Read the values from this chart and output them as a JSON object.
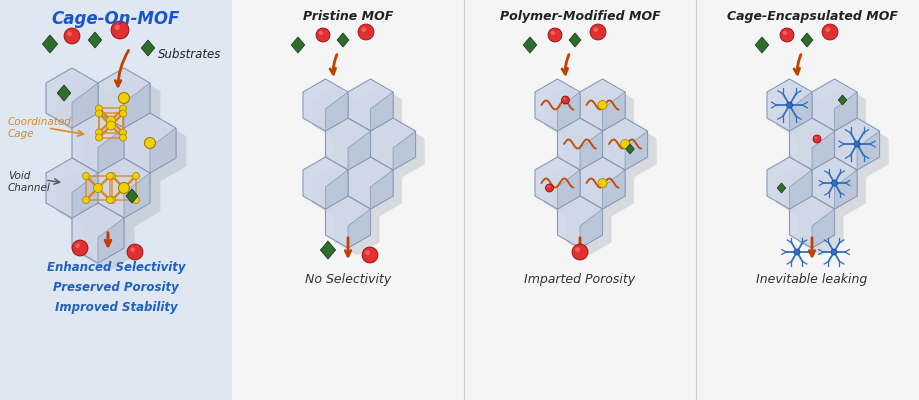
{
  "title": "Cage-On-MOF",
  "left_bg_color": "#dfe8f2",
  "right_bg_color": "#f5f5f5",
  "left_labels": [
    "Enhanced Selectivity",
    "Preserved Porosity",
    "Improved Stability"
  ],
  "left_label_color": "#2060c0",
  "column_titles": [
    "Pristine MOF",
    "Polymer-Modified MOF",
    "Cage-Encapsulated MOF"
  ],
  "column_titles_color": "#222222",
  "column_bottom_labels": [
    "No Selectivity",
    "Imparted Porosity",
    "Inevitable leaking"
  ],
  "column_bottom_color": "#333333",
  "arrow_color": "#c04000",
  "hex_fill_light": "#d0d8e8",
  "hex_fill_dark": "#b8c4d8",
  "hex_edge": "#8090b0",
  "cage_color": "#e08820",
  "cage_node_color": "#f0d000",
  "red_ball_color": "#e03030",
  "green_diamond_color": "#2d6e2d",
  "blue_cage_color": "#3070c0",
  "polymer_color": "#c05010",
  "shadow_color": "#a0a8b8"
}
